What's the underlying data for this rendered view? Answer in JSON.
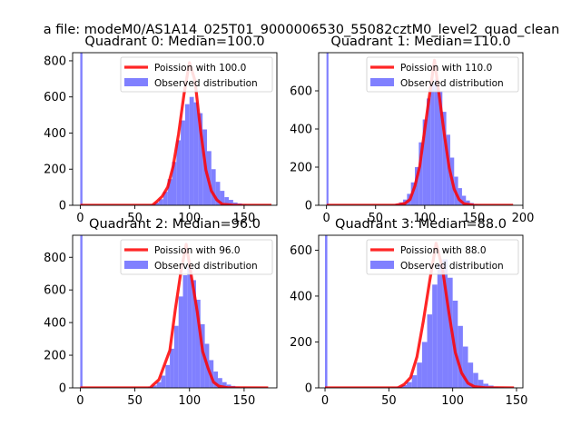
{
  "figure": {
    "suptitle": "a file: modeM0/AS1A14_025T01_9000006530_55082cztM0_level2_quad_clean",
    "bg_color": "#ffffff"
  },
  "colors": {
    "hist": "#8080ff",
    "poisson_line": "#ff0000",
    "poisson_line_alpha": 0.85,
    "legend_frame": "#cccccc"
  },
  "chart_data": [
    {
      "type": "bar",
      "title": "Quadrant 0: Median=100.0",
      "median": 100.0,
      "xlim": [
        -7,
        180
      ],
      "ylim": [
        0,
        845
      ],
      "xticks": [
        0,
        50,
        100,
        150
      ],
      "yticks": [
        0,
        200,
        400,
        600,
        800
      ],
      "legend": [
        "Poission with 100.0",
        "Observed distribution"
      ],
      "legend_loc": "upper right",
      "zero_bin": {
        "x0": 0,
        "x1": 2,
        "count": 845
      },
      "hist_bins": [
        [
          60,
          3
        ],
        [
          64,
          6
        ],
        [
          68,
          15
        ],
        [
          72,
          34
        ],
        [
          76,
          75
        ],
        [
          80,
          145
        ],
        [
          84,
          240
        ],
        [
          88,
          360
        ],
        [
          92,
          470
        ],
        [
          96,
          560
        ],
        [
          100,
          600
        ],
        [
          104,
          570
        ],
        [
          108,
          510
        ],
        [
          112,
          420
        ],
        [
          116,
          300
        ],
        [
          120,
          200
        ],
        [
          124,
          130
        ],
        [
          128,
          80
        ],
        [
          132,
          45
        ],
        [
          136,
          30
        ],
        [
          140,
          15
        ],
        [
          144,
          10
        ],
        [
          148,
          6
        ],
        [
          152,
          3
        ]
      ],
      "poisson_curve": [
        [
          0,
          0
        ],
        [
          66,
          0
        ],
        [
          70,
          20
        ],
        [
          75,
          50
        ],
        [
          80,
          100
        ],
        [
          85,
          215
        ],
        [
          90,
          395
        ],
        [
          95,
          615
        ],
        [
          100,
          790
        ],
        [
          105,
          690
        ],
        [
          110,
          420
        ],
        [
          115,
          195
        ],
        [
          120,
          80
        ],
        [
          125,
          30
        ],
        [
          130,
          6
        ],
        [
          140,
          1
        ],
        [
          175,
          0
        ]
      ]
    },
    {
      "type": "bar",
      "title": "Quadrant 1: Median=110.0",
      "median": 110.0,
      "xlim": [
        -8,
        200
      ],
      "ylim": [
        0,
        800
      ],
      "xticks": [
        0,
        50,
        100,
        150,
        200
      ],
      "yticks": [
        0,
        200,
        400,
        600
      ],
      "legend": [
        "Poission with 110.0",
        "Observed distribution"
      ],
      "legend_loc": "upper right",
      "zero_bin": {
        "x0": 0,
        "x1": 2,
        "count": 800
      },
      "hist_bins": [
        [
          66,
          3
        ],
        [
          70,
          8
        ],
        [
          74,
          15
        ],
        [
          78,
          30
        ],
        [
          82,
          60
        ],
        [
          86,
          120
        ],
        [
          90,
          200
        ],
        [
          94,
          330
        ],
        [
          98,
          450
        ],
        [
          102,
          560
        ],
        [
          106,
          640
        ],
        [
          110,
          660
        ],
        [
          114,
          600
        ],
        [
          118,
          490
        ],
        [
          122,
          370
        ],
        [
          126,
          250
        ],
        [
          130,
          150
        ],
        [
          134,
          90
        ],
        [
          138,
          50
        ],
        [
          142,
          25
        ],
        [
          146,
          12
        ],
        [
          150,
          6
        ],
        [
          154,
          3
        ]
      ],
      "poisson_curve": [
        [
          0,
          0
        ],
        [
          70,
          0
        ],
        [
          80,
          10
        ],
        [
          85,
          30
        ],
        [
          90,
          100
        ],
        [
          95,
          205
        ],
        [
          100,
          395
        ],
        [
          105,
          580
        ],
        [
          110,
          760
        ],
        [
          115,
          565
        ],
        [
          120,
          370
        ],
        [
          125,
          195
        ],
        [
          130,
          85
        ],
        [
          135,
          30
        ],
        [
          140,
          8
        ],
        [
          150,
          1
        ],
        [
          190,
          0
        ]
      ]
    },
    {
      "type": "bar",
      "title": "Quadrant 2: Median=96.0",
      "median": 96.0,
      "xlim": [
        -7,
        180
      ],
      "ylim": [
        0,
        935
      ],
      "xticks": [
        0,
        50,
        100,
        150
      ],
      "yticks": [
        0,
        200,
        400,
        600,
        800
      ],
      "legend": [
        "Poission with 96.0",
        "Observed distribution"
      ],
      "legend_loc": "upper right",
      "zero_bin": {
        "x0": 0,
        "x1": 2,
        "count": 935
      },
      "hist_bins": [
        [
          58,
          3
        ],
        [
          62,
          8
        ],
        [
          66,
          15
        ],
        [
          70,
          35
        ],
        [
          74,
          75
        ],
        [
          78,
          140
        ],
        [
          82,
          240
        ],
        [
          86,
          380
        ],
        [
          90,
          560
        ],
        [
          94,
          690
        ],
        [
          98,
          740
        ],
        [
          102,
          660
        ],
        [
          106,
          540
        ],
        [
          110,
          390
        ],
        [
          114,
          270
        ],
        [
          118,
          170
        ],
        [
          122,
          100
        ],
        [
          126,
          60
        ],
        [
          130,
          35
        ],
        [
          134,
          20
        ],
        [
          138,
          12
        ],
        [
          142,
          7
        ],
        [
          146,
          3
        ]
      ],
      "poisson_curve": [
        [
          0,
          0
        ],
        [
          64,
          0
        ],
        [
          67,
          20
        ],
        [
          72,
          50
        ],
        [
          77,
          140
        ],
        [
          82,
          230
        ],
        [
          87,
          480
        ],
        [
          92,
          705
        ],
        [
          97,
          880
        ],
        [
          102,
          675
        ],
        [
          107,
          470
        ],
        [
          112,
          225
        ],
        [
          117,
          120
        ],
        [
          122,
          35
        ],
        [
          127,
          10
        ],
        [
          135,
          1
        ],
        [
          172,
          0
        ]
      ]
    },
    {
      "type": "bar",
      "title": "Quadrant 3: Median=88.0",
      "median": 88.0,
      "xlim": [
        -5,
        155
      ],
      "ylim": [
        0,
        665
      ],
      "xticks": [
        0,
        50,
        100,
        150
      ],
      "yticks": [
        0,
        200,
        400,
        600
      ],
      "legend": [
        "Poission with 88.0",
        "Observed distribution"
      ],
      "legend_loc": "upper right",
      "zero_bin": {
        "x0": 0,
        "x1": 1.8,
        "count": 665
      },
      "hist_bins": [
        [
          52,
          3
        ],
        [
          56,
          6
        ],
        [
          60,
          12
        ],
        [
          64,
          25
        ],
        [
          68,
          55
        ],
        [
          72,
          110
        ],
        [
          76,
          200
        ],
        [
          80,
          320
        ],
        [
          84,
          450
        ],
        [
          88,
          540
        ],
        [
          92,
          560
        ],
        [
          96,
          480
        ],
        [
          100,
          380
        ],
        [
          104,
          270
        ],
        [
          108,
          180
        ],
        [
          112,
          110
        ],
        [
          116,
          65
        ],
        [
          120,
          35
        ],
        [
          124,
          18
        ],
        [
          128,
          10
        ],
        [
          132,
          5
        ],
        [
          136,
          3
        ]
      ],
      "poisson_curve": [
        [
          0,
          0
        ],
        [
          57,
          0
        ],
        [
          62,
          15
        ],
        [
          67,
          45
        ],
        [
          72,
          135
        ],
        [
          77,
          290
        ],
        [
          82,
          465
        ],
        [
          87,
          630
        ],
        [
          92,
          520
        ],
        [
          97,
          330
        ],
        [
          102,
          155
        ],
        [
          107,
          65
        ],
        [
          112,
          20
        ],
        [
          117,
          5
        ],
        [
          125,
          1
        ],
        [
          148,
          0
        ]
      ]
    }
  ]
}
